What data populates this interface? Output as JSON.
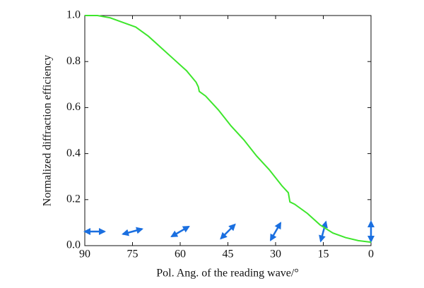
{
  "chart_data": {
    "type": "line",
    "x_label": "Pol. Ang. of the reading wave/°",
    "y_label": "Normalized diffraction efficiency",
    "x": [
      90,
      86,
      82,
      78,
      74,
      70,
      66,
      62,
      58,
      55,
      54.3,
      54,
      52,
      48,
      44,
      40,
      36,
      32,
      28,
      26,
      25.5,
      24,
      20,
      16,
      12,
      8,
      4,
      0
    ],
    "series": [
      {
        "name": "efficiency",
        "color": "#3ee62c",
        "values": [
          1.0,
          1.0,
          0.99,
          0.97,
          0.95,
          0.91,
          0.86,
          0.81,
          0.76,
          0.71,
          0.69,
          0.67,
          0.65,
          0.59,
          0.52,
          0.46,
          0.39,
          0.33,
          0.26,
          0.23,
          0.19,
          0.18,
          0.14,
          0.09,
          0.055,
          0.035,
          0.022,
          0.015
        ]
      }
    ],
    "xlim": [
      90,
      0
    ],
    "xticks": [
      90,
      75,
      60,
      45,
      30,
      15,
      0
    ],
    "ylim": [
      0,
      1
    ],
    "yticks": [
      {
        "value": 0,
        "label": "0.0"
      },
      0.2,
      0.4,
      0.6,
      0.8,
      {
        "value": 1,
        "label": "1.0"
      }
    ],
    "grid": false
  }
}
